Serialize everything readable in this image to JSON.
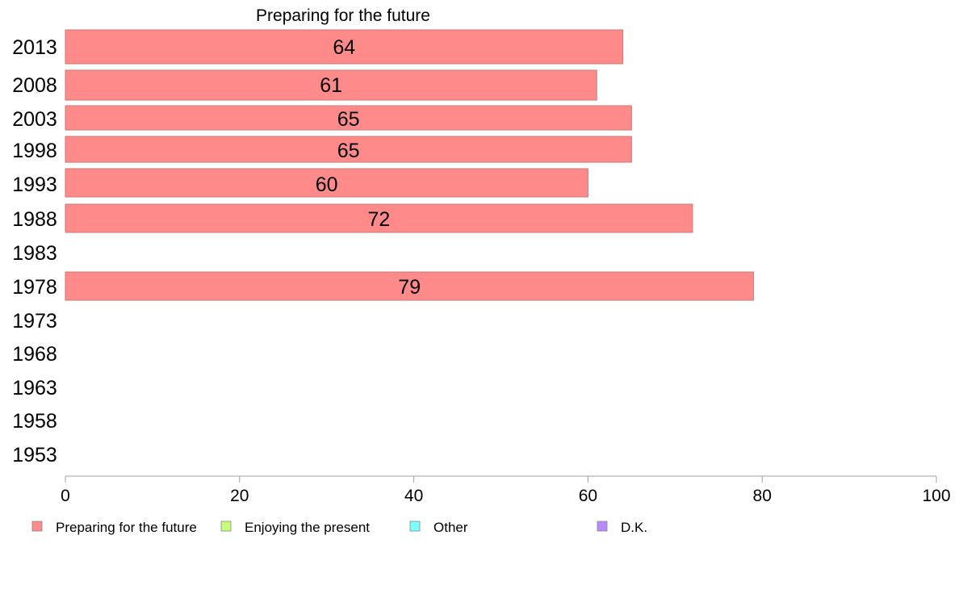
{
  "chart_data": {
    "type": "bar",
    "orientation": "horizontal",
    "title": "Preparing for the future",
    "categories": [
      "2013",
      "2008",
      "2003",
      "1998",
      "1993",
      "1988",
      "1983",
      "1978",
      "1973",
      "1968",
      "1963",
      "1958",
      "1953"
    ],
    "series": [
      {
        "name": "Preparing for the future",
        "color": "#ff8a8a",
        "values": [
          64,
          61,
          65,
          65,
          60,
          72,
          null,
          79,
          null,
          null,
          null,
          null,
          null
        ]
      }
    ],
    "xlim": [
      0,
      100
    ],
    "xticks": [
      0,
      20,
      40,
      60,
      80,
      100
    ],
    "grid": false,
    "legend": {
      "position": "bottom-left",
      "items": [
        {
          "label": "Preparing for the future",
          "color": "#ff8a8a"
        },
        {
          "label": "Enjoying the present",
          "color": "#c4ff7a"
        },
        {
          "label": "Other",
          "color": "#7affff"
        },
        {
          "label": "D.K.",
          "color": "#b98aff"
        }
      ]
    }
  }
}
